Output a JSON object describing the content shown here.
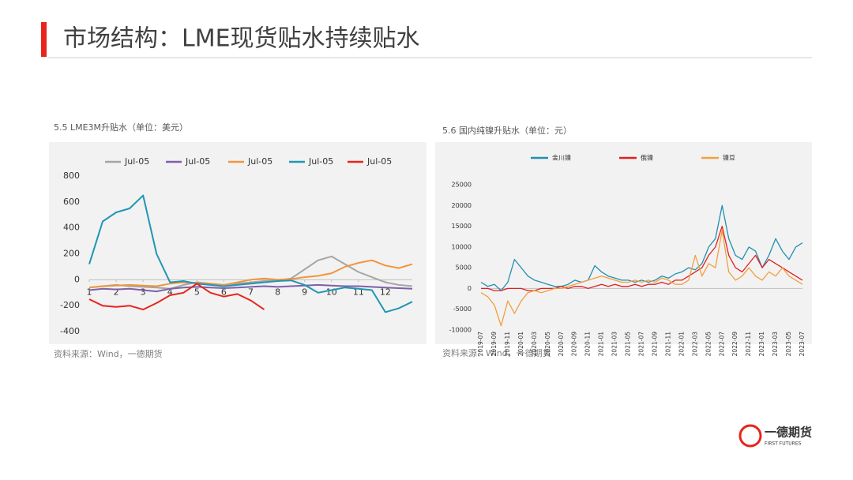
{
  "header": {
    "title": "市场结构：LME现货贴水持续贴水"
  },
  "chart_data": [
    {
      "type": "line",
      "title": "5.5 LME3M升贴水（单位：美元）",
      "source": "资料来源：Wind，一德期货",
      "x": [
        1,
        1.5,
        2,
        2.5,
        3,
        3.5,
        4,
        4.5,
        5,
        5.5,
        6,
        6.5,
        7,
        7.5,
        8,
        8.5,
        9,
        9.5,
        10,
        10.5,
        11,
        11.5,
        12,
        12.5,
        13
      ],
      "xlim": [
        1,
        13
      ],
      "xticks": [
        1,
        2,
        3,
        4,
        5,
        6,
        7,
        8,
        9,
        10,
        11,
        12
      ],
      "ylim": [
        -400,
        800
      ],
      "yticks": [
        -400,
        -200,
        0,
        200,
        400,
        600,
        800
      ],
      "series": [
        {
          "name": "Jul-05",
          "color": "#a5a5a5",
          "values": [
            -60,
            -50,
            -40,
            -50,
            -55,
            -60,
            -70,
            -40,
            -20,
            -30,
            -40,
            -30,
            -20,
            -10,
            -5,
            10,
            80,
            150,
            180,
            120,
            60,
            20,
            -20,
            -40,
            -50
          ]
        },
        {
          "name": "Jul-05",
          "color": "#7f5fa8",
          "values": [
            -80,
            -70,
            -75,
            -70,
            -80,
            -90,
            -70,
            -60,
            -55,
            -60,
            -65,
            -60,
            -55,
            -50,
            -55,
            -50,
            -45,
            -40,
            -45,
            -50,
            -50,
            -55,
            -60,
            -65,
            -70
          ]
        },
        {
          "name": "Jul-05",
          "color": "#f0963c",
          "values": [
            -60,
            -50,
            -45,
            -40,
            -45,
            -50,
            -30,
            -20,
            -25,
            -30,
            -40,
            -20,
            0,
            10,
            0,
            5,
            20,
            30,
            50,
            100,
            130,
            150,
            110,
            90,
            120
          ]
        },
        {
          "name": "Jul-05",
          "color": "#1f96b4",
          "values": [
            120,
            450,
            520,
            550,
            650,
            200,
            -20,
            -10,
            -30,
            -40,
            -50,
            -40,
            -30,
            -20,
            -10,
            -5,
            -40,
            -100,
            -80,
            -60,
            -70,
            -80,
            -250,
            -220,
            -170
          ]
        },
        {
          "name": "Jul-05",
          "color": "#e8241c",
          "values": [
            -150,
            -200,
            -210,
            -200,
            -230,
            -180,
            -120,
            -100,
            -30,
            -100,
            -130,
            -110,
            -160,
            -230,
            null,
            null,
            null,
            null,
            null,
            null,
            null,
            null,
            null,
            null,
            null
          ]
        }
      ]
    },
    {
      "type": "line",
      "title": "5.6 国内纯镍升贴水（单位：元）",
      "source": "资料来源：Wind，一德期货",
      "categories": [
        "2019-07",
        null,
        "2019-09",
        null,
        "2019-11",
        null,
        "2020-01",
        null,
        "2020-03",
        null,
        "2020-05",
        null,
        "2020-07",
        null,
        "2020-09",
        null,
        "2020-11",
        null,
        "2021-01",
        null,
        "2021-03",
        null,
        "2021-05",
        null,
        "2021-07",
        null,
        "2021-09",
        null,
        "2021-11",
        null,
        "2022-01",
        null,
        "2022-03",
        null,
        "2022-05",
        null,
        "2022-07",
        null,
        "2022-09",
        null,
        "2022-11",
        null,
        "2023-01",
        null,
        "2023-03",
        null,
        "2023-05",
        null,
        "2023-07"
      ],
      "ylim": [
        -10000,
        25000
      ],
      "yticks": [
        -10000,
        -5000,
        0,
        5000,
        10000,
        15000,
        20000,
        25000
      ],
      "series": [
        {
          "name": "金川镍",
          "color": "#2090b0",
          "values": [
            1500,
            500,
            1000,
            -500,
            1500,
            7000,
            5000,
            3000,
            2000,
            1500,
            1000,
            500,
            500,
            1000,
            2000,
            1500,
            2000,
            5500,
            4000,
            3000,
            2500,
            2000,
            2000,
            1500,
            2000,
            1500,
            2000,
            3000,
            2500,
            3500,
            4000,
            5000,
            4500,
            6000,
            10000,
            12000,
            20000,
            12000,
            8000,
            7000,
            10000,
            9000,
            5000,
            8000,
            12000,
            9000,
            7000,
            10000,
            11000
          ]
        },
        {
          "name": "俄镍",
          "color": "#e02020",
          "values": [
            0,
            0,
            -500,
            -500,
            0,
            0,
            0,
            -500,
            -500,
            0,
            0,
            0,
            500,
            0,
            500,
            500,
            0,
            500,
            1000,
            500,
            1000,
            500,
            500,
            1000,
            500,
            1000,
            1000,
            1500,
            1000,
            2000,
            2000,
            3000,
            4000,
            5000,
            8000,
            10000,
            15000,
            8000,
            5000,
            4000,
            6000,
            8000,
            5000,
            7000,
            6000,
            5000,
            4000,
            3000,
            2000
          ]
        },
        {
          "name": "镍豆",
          "color": "#f0a040",
          "values": [
            -1000,
            -2000,
            -4000,
            -9000,
            -3000,
            -6000,
            -3000,
            -1000,
            -500,
            -1000,
            -500,
            0,
            0,
            500,
            1000,
            1500,
            2000,
            2500,
            3000,
            2500,
            2000,
            1500,
            1500,
            2000,
            1500,
            2000,
            1500,
            2500,
            2000,
            1000,
            1000,
            2000,
            8000,
            3000,
            6000,
            5000,
            14000,
            4000,
            2000,
            3000,
            5000,
            3000,
            2000,
            4000,
            3000,
            5000,
            3000,
            2000,
            1000
          ]
        }
      ]
    }
  ],
  "footer": {
    "logo_name": "一德期货",
    "logo_en": "FIRST FUTURES"
  }
}
